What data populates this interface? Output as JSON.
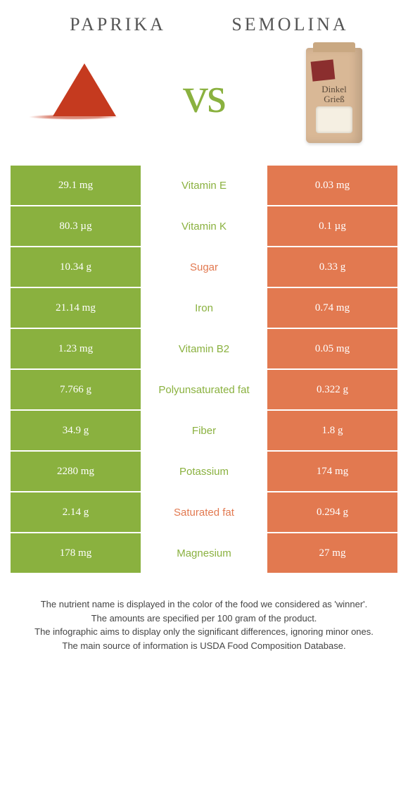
{
  "header": {
    "left_title": "Paprika",
    "right_title": "Semolina",
    "vs_text": "vs"
  },
  "images": {
    "semolina_bag_line1": "Dinkel",
    "semolina_bag_line2": "Grieß"
  },
  "colors": {
    "left": "#8ab13f",
    "right": "#e27950",
    "vs": "#8ab13f"
  },
  "rows": [
    {
      "left": "29.1 mg",
      "label": "Vitamin E",
      "right": "0.03 mg",
      "winner": "left"
    },
    {
      "left": "80.3 µg",
      "label": "Vitamin K",
      "right": "0.1 µg",
      "winner": "left"
    },
    {
      "left": "10.34 g",
      "label": "Sugar",
      "right": "0.33 g",
      "winner": "right"
    },
    {
      "left": "21.14 mg",
      "label": "Iron",
      "right": "0.74 mg",
      "winner": "left"
    },
    {
      "left": "1.23 mg",
      "label": "Vitamin B2",
      "right": "0.05 mg",
      "winner": "left"
    },
    {
      "left": "7.766 g",
      "label": "Polyunsaturated fat",
      "right": "0.322 g",
      "winner": "left"
    },
    {
      "left": "34.9 g",
      "label": "Fiber",
      "right": "1.8 g",
      "winner": "left"
    },
    {
      "left": "2280 mg",
      "label": "Potassium",
      "right": "174 mg",
      "winner": "left"
    },
    {
      "left": "2.14 g",
      "label": "Saturated fat",
      "right": "0.294 g",
      "winner": "right"
    },
    {
      "left": "178 mg",
      "label": "Magnesium",
      "right": "27 mg",
      "winner": "left"
    }
  ],
  "footnote": {
    "line1": "The nutrient name is displayed in the color of the food we considered as 'winner'.",
    "line2": "The amounts are specified per 100 gram of the product.",
    "line3": "The infographic aims to display only the significant differences, ignoring minor ones.",
    "line4": "The main source of information is USDA Food Composition Database."
  }
}
